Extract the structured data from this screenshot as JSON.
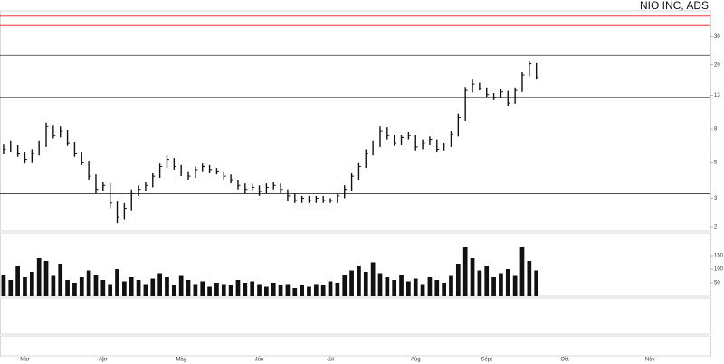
{
  "chart_data": {
    "type": "hlc",
    "title": "NIO INC, ADS",
    "categories": [
      null,
      null,
      null,
      "Mar",
      null,
      null,
      null,
      null,
      null,
      null,
      null,
      null,
      null,
      null,
      "Apr",
      null,
      null,
      null,
      null,
      null,
      null,
      null,
      null,
      null,
      null,
      "May",
      null,
      null,
      null,
      null,
      null,
      null,
      null,
      null,
      null,
      null,
      "Jun",
      null,
      null,
      null,
      null,
      null,
      null,
      null,
      null,
      null,
      "Jul",
      null,
      null,
      null,
      null,
      null,
      null,
      null,
      null,
      null,
      null,
      null,
      "Aug",
      null,
      null,
      null,
      null,
      null,
      null,
      null,
      null,
      null,
      "Sept",
      null,
      null,
      null,
      null,
      null,
      null,
      null,
      null,
      null,
      null,
      "Oct",
      null,
      null,
      null,
      null,
      null,
      null,
      null,
      null,
      null,
      null,
      null,
      "Nov",
      null,
      null,
      null,
      null,
      null,
      null,
      null,
      null
    ],
    "high": [
      6.5,
      6.8,
      6.4,
      5.8,
      6.0,
      6.8,
      8.8,
      8.5,
      8.3,
      7.9,
      6.7,
      5.8,
      5.1,
      4.2,
      3.8,
      3.7,
      2.9,
      2.8,
      3.4,
      3.6,
      3.8,
      4.3,
      4.9,
      5.5,
      5.3,
      4.8,
      4.4,
      4.7,
      4.9,
      4.8,
      4.6,
      4.4,
      4.2,
      3.9,
      3.7,
      3.7,
      3.6,
      3.7,
      3.8,
      3.7,
      3.4,
      3.2,
      3.1,
      3.1,
      3.1,
      3.1,
      3.0,
      3.2,
      3.6,
      4.3,
      5.0,
      6.0,
      6.8,
      8.3,
      8.2,
      7.4,
      7.4,
      7.7,
      7.4,
      6.9,
      7.2,
      6.9,
      6.6,
      7.8,
      10.0,
      14.6,
      16.2,
      15.5,
      14.5,
      13.4,
      14.2,
      13.8,
      14.5,
      18.0,
      21.0,
      20.5,
      null,
      null,
      null,
      null,
      null,
      null,
      null,
      null,
      null,
      null,
      null,
      null,
      null,
      null,
      null,
      null,
      null,
      null,
      null,
      null,
      null,
      null,
      null,
      null
    ],
    "low": [
      5.6,
      5.8,
      5.4,
      4.9,
      5.0,
      5.5,
      6.2,
      7.0,
      7.1,
      6.3,
      5.4,
      4.8,
      3.9,
      3.2,
      3.3,
      2.6,
      2.1,
      2.2,
      2.5,
      3.1,
      3.3,
      3.5,
      4.0,
      4.6,
      4.5,
      4.1,
      3.9,
      4.0,
      4.4,
      4.3,
      4.2,
      3.9,
      3.7,
      3.4,
      3.2,
      3.3,
      3.1,
      3.2,
      3.4,
      3.2,
      2.9,
      2.8,
      2.8,
      2.8,
      2.8,
      2.8,
      2.8,
      2.8,
      3.0,
      3.3,
      3.9,
      4.6,
      5.5,
      6.2,
      6.9,
      6.3,
      6.4,
      6.9,
      5.9,
      6.0,
      6.4,
      5.8,
      5.9,
      6.2,
      7.2,
      9.0,
      13.5,
      13.9,
      12.7,
      12.1,
      12.4,
      11.2,
      11.5,
      13.6,
      17.0,
      16.2,
      null,
      null,
      null,
      null,
      null,
      null,
      null,
      null,
      null,
      null,
      null,
      null,
      null,
      null,
      null,
      null,
      null,
      null,
      null,
      null,
      null,
      null,
      null,
      null
    ],
    "close": [
      6.0,
      6.4,
      5.7,
      5.2,
      5.7,
      6.4,
      8.3,
      7.3,
      7.8,
      6.6,
      5.7,
      5.0,
      4.1,
      3.4,
      3.6,
      2.8,
      2.3,
      2.6,
      3.2,
      3.4,
      3.6,
      4.1,
      4.7,
      5.2,
      4.7,
      4.3,
      4.1,
      4.5,
      4.7,
      4.5,
      4.4,
      4.1,
      3.9,
      3.6,
      3.4,
      3.5,
      3.3,
      3.5,
      3.6,
      3.4,
      3.1,
      2.9,
      3.0,
      2.9,
      3.0,
      2.9,
      2.9,
      3.1,
      3.4,
      4.1,
      4.7,
      5.7,
      6.4,
      7.8,
      7.3,
      6.6,
      7.1,
      7.3,
      6.2,
      6.6,
      6.9,
      6.0,
      6.4,
      7.5,
      9.4,
      13.9,
      15.2,
      14.3,
      13.1,
      12.6,
      13.6,
      11.6,
      13.9,
      17.3,
      20.3,
      16.8,
      null,
      null,
      null,
      null,
      null,
      null,
      null,
      null,
      null,
      null,
      null,
      null,
      null,
      null,
      null,
      null,
      null,
      null,
      null,
      null,
      null,
      null,
      null,
      null
    ],
    "color": "#111111",
    "log_scale": true,
    "ylim": [
      1.9,
      42
    ],
    "yticks": [
      2,
      3,
      5,
      8,
      13,
      20,
      30
    ],
    "levels": [
      {
        "value": 40,
        "color": "#e31a1c"
      },
      {
        "value": 35,
        "color": "#e31a1c"
      },
      {
        "value": 22.9,
        "color": "#333333"
      },
      {
        "value": 12.6,
        "color": "#333333"
      },
      {
        "value": 3.2,
        "color": "#333333"
      }
    ],
    "volume": {
      "color": "#111111",
      "ylim": [
        0,
        200
      ],
      "yticks": [
        50,
        100,
        150
      ],
      "values": [
        80,
        60,
        110,
        70,
        90,
        140,
        130,
        75,
        120,
        60,
        50,
        70,
        95,
        80,
        60,
        45,
        100,
        55,
        70,
        60,
        45,
        65,
        85,
        70,
        40,
        75,
        60,
        45,
        55,
        35,
        50,
        45,
        40,
        60,
        50,
        55,
        45,
        35,
        50,
        40,
        45,
        30,
        40,
        35,
        45,
        40,
        55,
        50,
        80,
        95,
        110,
        90,
        125,
        85,
        70,
        60,
        80,
        55,
        65,
        45,
        70,
        60,
        50,
        75,
        120,
        180,
        140,
        95,
        110,
        70,
        85,
        100,
        75,
        180,
        130,
        95,
        null,
        null,
        null,
        null,
        null,
        null,
        null,
        null,
        null,
        null,
        null,
        null,
        null,
        null,
        null,
        null,
        null,
        null,
        null,
        null,
        null,
        null,
        null,
        null
      ]
    }
  }
}
